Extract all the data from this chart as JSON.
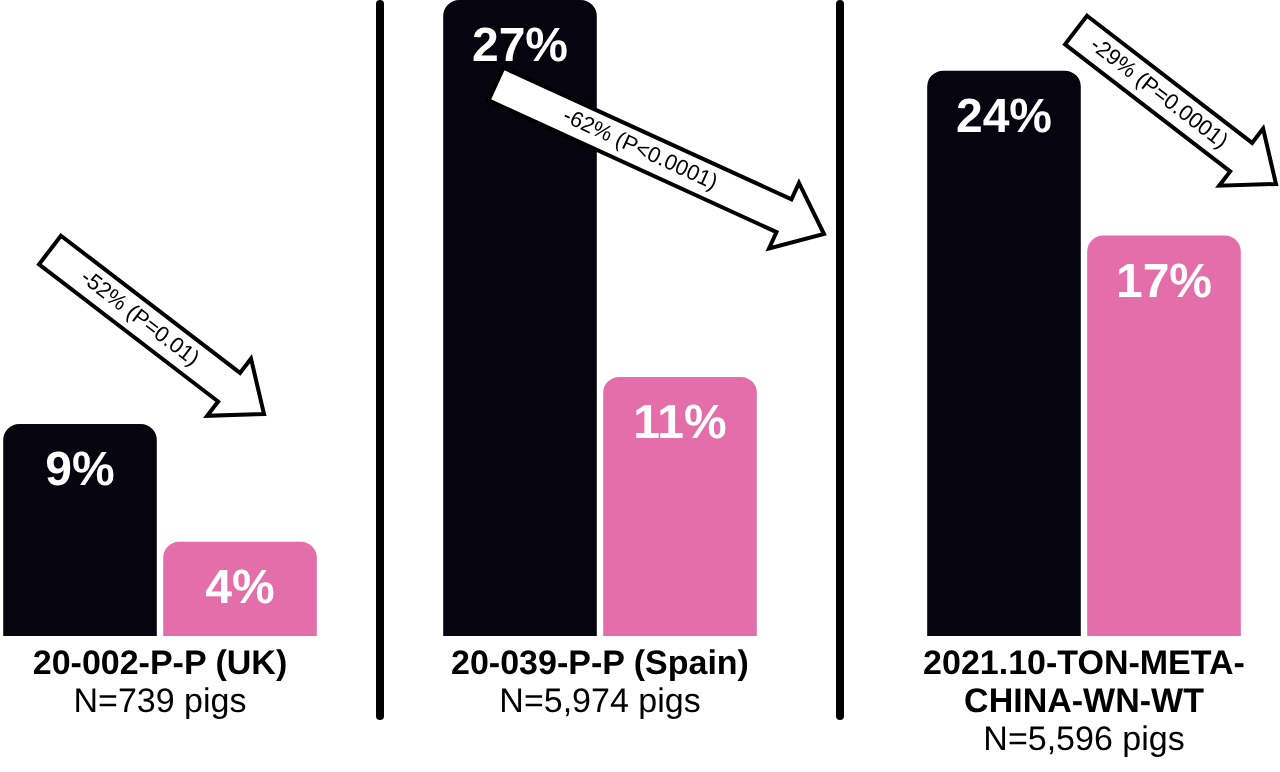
{
  "chart_data": [
    {
      "type": "bar",
      "categories": [
        null,
        null
      ],
      "values": [
        9,
        4
      ],
      "colors": [
        "#05040f",
        "#e46ea9"
      ],
      "value_labels": [
        "9%",
        "4%"
      ],
      "xlabel": "20-002-P-P (UK)",
      "annotations": [
        "-52% (P=0.01)",
        "N=739 pigs"
      ],
      "ylim": [
        0,
        27
      ],
      "tick_labels": false
    },
    {
      "type": "bar",
      "categories": [
        null,
        null
      ],
      "values": [
        27,
        11
      ],
      "colors": [
        "#05040f",
        "#e46ea9"
      ],
      "value_labels": [
        "27%",
        "11%"
      ],
      "xlabel": "20-039-P-P (Spain)",
      "annotations": [
        "-62% (P<0.0001)",
        "N=5,974 pigs"
      ],
      "ylim": [
        0,
        27
      ],
      "tick_labels": false
    },
    {
      "type": "bar",
      "categories": [
        null,
        null
      ],
      "values": [
        24,
        17
      ],
      "colors": [
        "#05040f",
        "#e46ea9"
      ],
      "value_labels": [
        "24%",
        "17%"
      ],
      "xlabel": "2021.10-TON-META-CHINA-WN-WT",
      "annotations": [
        "-29% (P=0.0001)",
        "N=5,596 pigs"
      ],
      "ylim": [
        0,
        27
      ],
      "tick_labels": false
    }
  ]
}
